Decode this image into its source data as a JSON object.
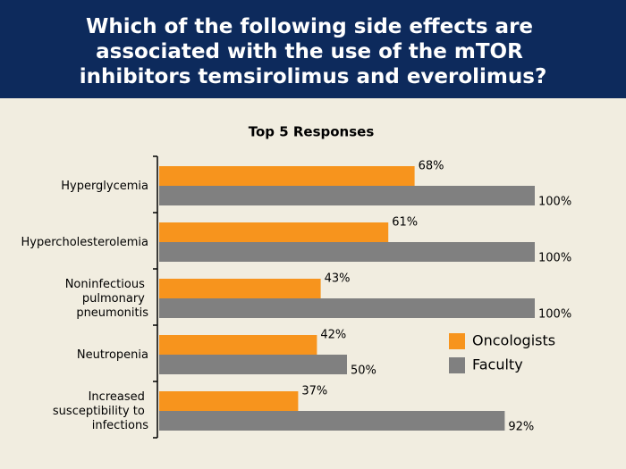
{
  "chart_data": {
    "type": "hbar",
    "title": "Which of the following side effects are\nassociated with the use of the mTOR\ninhibitors temsirolimus and everolimus?",
    "subtitle": "Top 5 Responses",
    "categories": [
      "Hyperglycemia",
      "Hypercholesterolemia",
      "Noninfectious\npulmonary\npneumonitis",
      "Neutropenia",
      "Increased\nsusceptibility to\ninfections"
    ],
    "series": [
      {
        "name": "Oncologists",
        "color": "#f7941d",
        "values": [
          68,
          61,
          43,
          42,
          37
        ],
        "value_labels": [
          "68%",
          "61%",
          "43%",
          "42%",
          "37%"
        ]
      },
      {
        "name": "Faculty",
        "color": "#808080",
        "values": [
          100,
          100,
          100,
          50,
          92
        ],
        "value_labels": [
          "100%",
          "100%",
          "100%",
          "50%",
          "92%"
        ]
      }
    ],
    "xlim": [
      0,
      100
    ]
  }
}
